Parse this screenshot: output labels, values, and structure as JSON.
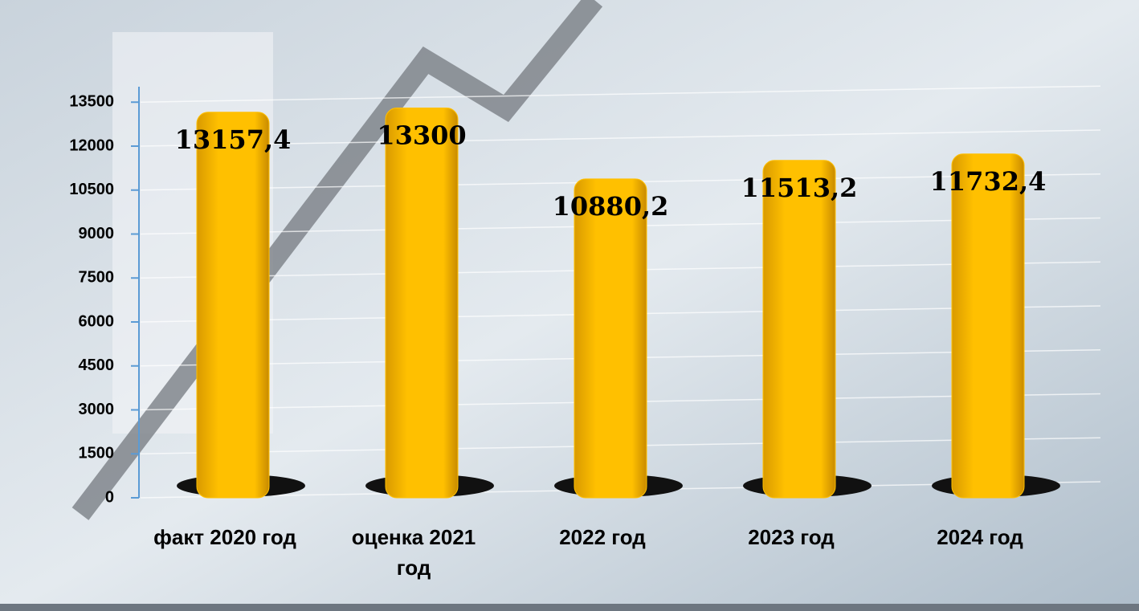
{
  "chart_data": {
    "type": "bar",
    "categories": [
      "факт 2020 год",
      "оценка 2021 год",
      "2022 год",
      "2023 год",
      "2024 год"
    ],
    "values": [
      13157.4,
      13300,
      10880.2,
      11513.2,
      11732.4
    ],
    "value_labels": [
      "13157,4",
      "13300",
      "10880,2",
      "11513,2",
      "11732,4"
    ],
    "color": "#ffc000",
    "ylim": [
      0,
      14000
    ],
    "yticks": [
      0,
      1500,
      3000,
      4500,
      6000,
      7500,
      9000,
      10500,
      12000,
      13500
    ],
    "grid": true
  }
}
